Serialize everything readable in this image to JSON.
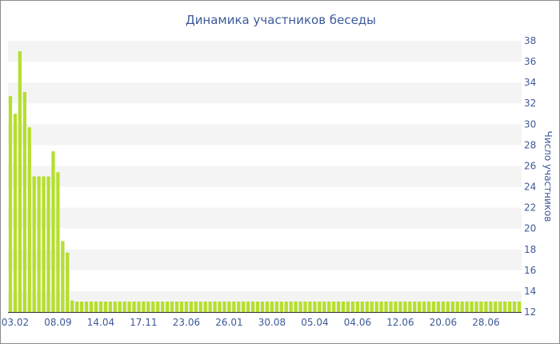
{
  "chart_data": {
    "type": "bar",
    "title": "Динамика участников беседы",
    "xlabel": "",
    "ylabel": "Число участников",
    "ylim": [
      12,
      38
    ],
    "ytick_step": 2,
    "y_axis_position": "right",
    "grid": "alternating-bands",
    "bar_color": "#b5df2d",
    "band_color": "#f4f4f4",
    "x_tick_labels": [
      {
        "index": 1,
        "label": "03.02"
      },
      {
        "index": 10,
        "label": "08.09"
      },
      {
        "index": 19,
        "label": "14.04"
      },
      {
        "index": 28,
        "label": "17.11"
      },
      {
        "index": 37,
        "label": "23.06"
      },
      {
        "index": 46,
        "label": "26.01"
      },
      {
        "index": 55,
        "label": "30.08"
      },
      {
        "index": 64,
        "label": "05.04"
      },
      {
        "index": 73,
        "label": "04.06"
      },
      {
        "index": 82,
        "label": "12.06"
      },
      {
        "index": 91,
        "label": "20.06"
      },
      {
        "index": 100,
        "label": "28.06"
      }
    ],
    "values": [
      32.7,
      31,
      37,
      33.1,
      29.7,
      25,
      25,
      25,
      25,
      27.4,
      25.4,
      18.8,
      17.7,
      13.1,
      13,
      13,
      13,
      13,
      13,
      13,
      13,
      13,
      13,
      13,
      13,
      13,
      13,
      13,
      13,
      13,
      13,
      13,
      13,
      13,
      13,
      13,
      13,
      13,
      13,
      13,
      13,
      13,
      13,
      13,
      13,
      13,
      13,
      13,
      13,
      13,
      13,
      13,
      13,
      13,
      13,
      13,
      13,
      13,
      13,
      13,
      13,
      13,
      13,
      13,
      13,
      13,
      13,
      13,
      13,
      13,
      13,
      13,
      13,
      13,
      13,
      13,
      13,
      13,
      13,
      13,
      13,
      13,
      13,
      13,
      13,
      13,
      13,
      13,
      13,
      13,
      13,
      13,
      13,
      13,
      13,
      13,
      13,
      13,
      13,
      13,
      13,
      13,
      13,
      13,
      13,
      13,
      13,
      13
    ]
  }
}
